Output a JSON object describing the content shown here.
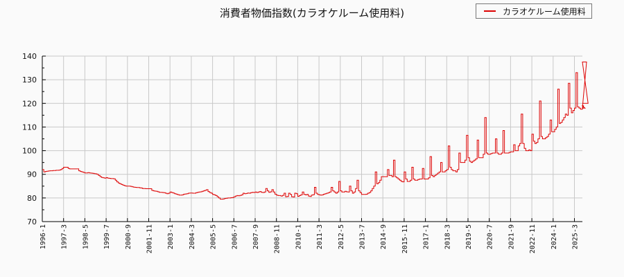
{
  "chart_data": {
    "type": "line",
    "title": "消費者物価指数(カラオケルーム使用料)",
    "xlabel": "",
    "ylabel": "",
    "ylim": [
      70,
      140
    ],
    "yticks": [
      70,
      80,
      90,
      100,
      110,
      120,
      130,
      140
    ],
    "grid": true,
    "legend_position": "top-right",
    "x_tick_labels": [
      "1996-1",
      "1997-3",
      "1998-5",
      "1999-7",
      "2000-9",
      "2001-11",
      "2003-1",
      "2004-3",
      "2005-5",
      "2006-7",
      "2007-9",
      "2008-11",
      "2010-1",
      "2011-3",
      "2012-5",
      "2013-7",
      "2014-9",
      "2015-11",
      "2017-1",
      "2018-3",
      "2019-5",
      "2020-7",
      "2021-9",
      "2022-11",
      "2024-1",
      "2025-3"
    ],
    "x_start": "1996-1",
    "series": [
      {
        "name": "カラオケルーム使用料",
        "color": "#dd0000",
        "values_annual_approx": {
          "1996": [
            92,
            91,
            91.2,
            91.3,
            91.4,
            91.5,
            91.5,
            91.6,
            91.6,
            91.7,
            91.7,
            91.8
          ],
          "1997": [
            92,
            92.5,
            93,
            93,
            93,
            92.5,
            92.3,
            92.3,
            92.3,
            92.3,
            92.3,
            92.3
          ],
          "1998": [
            91.5,
            91.2,
            91,
            90.8,
            90.6,
            90.6,
            90.7,
            90.6,
            90.5,
            90.4,
            90.3,
            90.2
          ],
          "1999": [
            90,
            89.5,
            89,
            88.7,
            88.5,
            88.4,
            88.6,
            88.4,
            88.3,
            88.2,
            88.2,
            88.1
          ],
          "2000": [
            87.5,
            86.8,
            86.3,
            86,
            85.7,
            85.4,
            85.2,
            85,
            85,
            85,
            84.9,
            84.7
          ],
          "2001": [
            84.6,
            84.5,
            84.4,
            84.4,
            84.3,
            84.2,
            84.0,
            84.0,
            83.9,
            83.9,
            83.9,
            83.9
          ],
          "2002": [
            83.2,
            83.0,
            82.9,
            82.8,
            82.6,
            82.4,
            82.4,
            82.3,
            82.2,
            82.0,
            81.8,
            82.0
          ],
          "2003": [
            82.5,
            82.3,
            82.1,
            81.8,
            81.6,
            81.4,
            81.2,
            81.2,
            81.3,
            81.6,
            81.7,
            81.8
          ],
          "2004": [
            82,
            82.1,
            82.1,
            82.0,
            82.0,
            82.2,
            82.4,
            82.5,
            82.6,
            82.8,
            83.0,
            83.2
          ],
          "2005": [
            83.5,
            82.7,
            82.3,
            82.0,
            81.5,
            81.3,
            81.0,
            80.5,
            80.0,
            79.5,
            79.5,
            79.6
          ],
          "2006": [
            79.8,
            79.9,
            80.0,
            80.0,
            80.1,
            80.2,
            80.5,
            80.8,
            81.0,
            80.9,
            81.1,
            81.3
          ],
          "2007": [
            82.0,
            81.8,
            81.9,
            82.1,
            82.0,
            82.2,
            82.4,
            82.3,
            82.5,
            82.3,
            82.5,
            82.7
          ],
          "2008": [
            82.4,
            82.3,
            82.5,
            84.0,
            83.0,
            82.4,
            82.6,
            83.5,
            82.5,
            81.6,
            81.2,
            81.0
          ],
          "2009": [
            81.0,
            80.8,
            81.1,
            82.0,
            80.5,
            80.6,
            82.0,
            81.5,
            80.5,
            80.4,
            82.0,
            81.8
          ],
          "2010": [
            80.7,
            81.0,
            81.3,
            82.5,
            81.5,
            81.3,
            81.5,
            80.8,
            80.6,
            81.2,
            81.4,
            84.5
          ],
          "2011": [
            82.0,
            81.5,
            81.3,
            81.2,
            81.3,
            81.6,
            81.8,
            82.0,
            82.2,
            82.5,
            84.5,
            83.0
          ],
          "2012": [
            82.5,
            82.0,
            82.5,
            87.0,
            83.0,
            82.5,
            82.5,
            82.8,
            82.6,
            82.5,
            85.0,
            83.0
          ],
          "2013": [
            82.0,
            82.5,
            84.0,
            87.5,
            83.0,
            82.2,
            81.5,
            81.5,
            81.5,
            81.6,
            82.0,
            82.3
          ],
          "2014": [
            83.0,
            84.0,
            85.0,
            91.0,
            86.0,
            86.5,
            87.5,
            89.0,
            89.0,
            89.0,
            89.0,
            92.0
          ],
          "2015": [
            89.5,
            89.5,
            89.0,
            96.0,
            89.0,
            88.5,
            88.0,
            87.5,
            87.0,
            86.8,
            91.0,
            88.0
          ],
          "2016": [
            87.0,
            87.0,
            87.5,
            93.0,
            88.0,
            87.5,
            87.5,
            87.8,
            88.0,
            88.0,
            92.5,
            88.0
          ],
          "2017": [
            88.0,
            88.0,
            88.5,
            97.5,
            89.5,
            89.0,
            89.5,
            90.0,
            90.5,
            91.0,
            95.0,
            91.0
          ],
          "2018": [
            91.0,
            91.5,
            92.0,
            102.0,
            93.0,
            92.0,
            91.5,
            91.5,
            91.0,
            92.0,
            99.0,
            95.0
          ],
          "2019": [
            95.0,
            95.0,
            96.0,
            106.5,
            97.0,
            95.5,
            95.0,
            95.5,
            96.0,
            96.5,
            104.5,
            97.0
          ],
          "2020": [
            97.0,
            97.0,
            98.5,
            114.0,
            99.0,
            98.5,
            98.5,
            98.8,
            99.0,
            99.0,
            105.0,
            99.0
          ],
          "2021": [
            98.5,
            98.5,
            99.0,
            108.5,
            99.0,
            99.0,
            99.0,
            99.3,
            99.5,
            99.5,
            102.5,
            100.0
          ],
          "2022": [
            100.0,
            102.0,
            103.0,
            115.5,
            103.0,
            101.0,
            100.0,
            100.0,
            100.3,
            100.0,
            107.0,
            104.0
          ],
          "2023": [
            103.0,
            103.5,
            105.0,
            121.0,
            106.0,
            105.0,
            105.0,
            105.5,
            106.0,
            107.0,
            113.0,
            108.0
          ],
          "2024": [
            108.0,
            109.0,
            110.0,
            126.0,
            111.5,
            112.0,
            113.0,
            114.0,
            115.5,
            115.0,
            128.5,
            118.0
          ],
          "2025": [
            116.0,
            117.0,
            118.0,
            133.0,
            118.5,
            118.0,
            117.5,
            117.5,
            119.0,
            118.0,
            137.5,
            120.0
          ]
        },
        "tail_values": [
          116,
          117,
          115,
          131.5,
          118,
          118,
          118,
          118,
          137,
          119
        ]
      }
    ]
  },
  "legend": {
    "label": "カラオケルーム使用料",
    "color": "#dd0000"
  }
}
